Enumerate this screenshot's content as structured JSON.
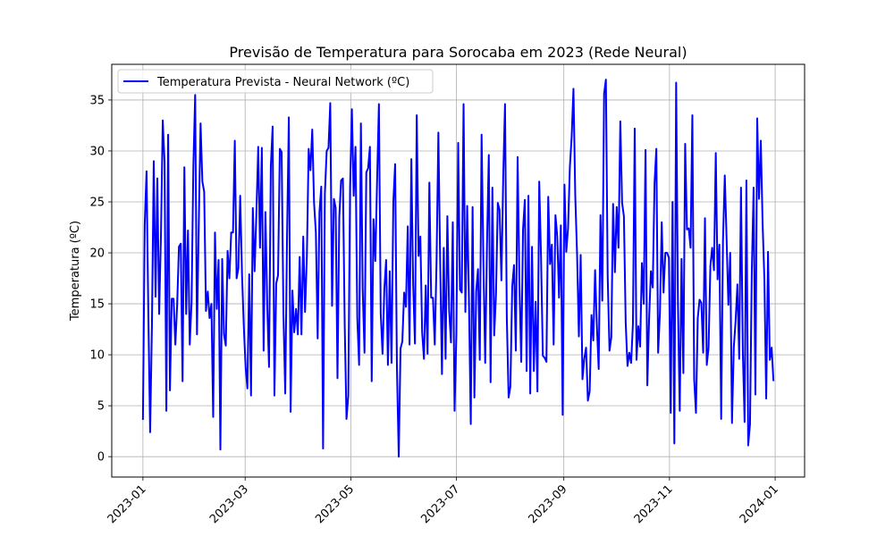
{
  "chart_data": {
    "type": "line",
    "title": "Previsão de Temperatura para Sorocaba em 2023 (Rede Neural)",
    "xlabel": "",
    "ylabel": "Temperatura (ºC)",
    "x_start": "2023-01-01",
    "x_end": "2023-12-31",
    "xlim": [
      "2022-12-14",
      "2024-01-18"
    ],
    "ylim": [
      -2,
      38.5
    ],
    "x_ticks": [
      "2023-01",
      "2023-03",
      "2023-05",
      "2023-07",
      "2023-09",
      "2023-11",
      "2024-01"
    ],
    "y_ticks": [
      0,
      5,
      10,
      15,
      20,
      25,
      30,
      35
    ],
    "grid": true,
    "legend_position": "upper-left",
    "series": [
      {
        "name": "Temperatura Prevista - Neural Network (ºC)",
        "color": "#0000ff",
        "values": [
          3.7,
          22.8,
          28.0,
          14.0,
          2.4,
          12.9,
          29.0,
          15.7,
          27.3,
          14.0,
          21.7,
          33.0,
          28.9,
          4.5,
          31.6,
          6.5,
          15.5,
          15.5,
          11.0,
          14.9,
          20.6,
          20.9,
          7.4,
          28.4,
          14.0,
          22.2,
          11.0,
          15.2,
          28.5,
          35.5,
          12.0,
          22.8,
          32.7,
          27.0,
          26.0,
          14.3,
          16.2,
          13.6,
          15.0,
          3.9,
          22.0,
          14.5,
          19.3,
          0.7,
          19.4,
          12.0,
          10.9,
          20.2,
          17.5,
          22.0,
          22.0,
          31.0,
          17.5,
          18.5,
          25.6,
          17.9,
          12.8,
          8.8,
          6.7,
          17.9,
          6.0,
          24.4,
          18.2,
          24.0,
          30.4,
          20.5,
          30.3,
          10.4,
          24.0,
          14.9,
          8.8,
          28.5,
          32.4,
          6.0,
          17.0,
          17.8,
          30.2,
          29.9,
          14.0,
          6.2,
          21.6,
          33.3,
          4.4,
          16.3,
          12.2,
          14.5,
          12.0,
          19.6,
          12.0,
          21.6,
          14.2,
          19.6,
          30.2,
          28.1,
          32.1,
          24.9,
          22.0,
          11.6,
          24.0,
          26.5,
          0.8,
          25.8,
          30.0,
          30.3,
          34.7,
          14.8,
          25.3,
          24.4,
          7.7,
          23.5,
          27.1,
          27.3,
          13.1,
          3.7,
          6.0,
          26.5,
          34.1,
          25.6,
          30.4,
          13.6,
          9.0,
          32.7,
          16.4,
          10.2,
          27.9,
          28.3,
          30.4,
          7.4,
          23.3,
          19.2,
          27.2,
          34.6,
          14.1,
          10.1,
          16.4,
          19.3,
          9.0,
          18.2,
          9.2,
          25.0,
          28.7,
          8.8,
          0.0,
          10.6,
          11.3,
          16.1,
          14.7,
          22.6,
          11.0,
          29.2,
          16.9,
          11.1,
          33.5,
          19.7,
          21.6,
          12.2,
          9.6,
          16.8,
          10.1,
          26.9,
          15.6,
          15.6,
          11.0,
          19.2,
          31.8,
          19.2,
          8.1,
          20.5,
          9.6,
          23.6,
          14.3,
          11.2,
          23.0,
          4.5,
          12.0,
          30.8,
          16.4,
          16.1,
          34.6,
          14.2,
          24.6,
          15.1,
          3.2,
          24.5,
          5.8,
          16.2,
          18.4,
          9.5,
          31.6,
          19.2,
          9.2,
          20.9,
          29.6,
          7.3,
          26.4,
          11.9,
          16.0,
          24.9,
          24.2,
          17.3,
          27.5,
          34.6,
          13.6,
          5.8,
          6.9,
          16.7,
          18.8,
          10.4,
          29.4,
          17.1,
          9.3,
          22.3,
          25.2,
          8.4,
          25.6,
          6.2,
          20.6,
          8.4,
          15.2,
          6.4,
          27.0,
          19.6,
          9.9,
          9.7,
          9.3,
          25.5,
          18.9,
          20.8,
          11.0,
          23.7,
          21.6,
          15.6,
          22.7,
          4.1,
          26.7,
          20.1,
          22.4,
          28.4,
          31.4,
          36.1,
          25.6,
          19.9,
          11.8,
          19.8,
          7.6,
          9.6,
          10.7,
          5.5,
          6.4,
          13.9,
          11.4,
          18.3,
          12.8,
          8.6,
          23.7,
          15.3,
          35.6,
          37.0,
          17.7,
          10.4,
          11.7,
          24.8,
          18.1,
          24.5,
          20.5,
          32.9,
          24.9,
          23.6,
          13.1,
          8.9,
          10.2,
          9.2,
          13.0,
          32.2,
          9.5,
          12.8,
          10.8,
          19.0,
          15.0,
          30.1,
          7.0,
          13.6,
          18.2,
          16.6,
          26.8,
          30.2,
          10.2,
          14.1,
          23.0,
          16.1,
          20.0,
          20.0,
          19.5,
          4.3,
          25.0,
          1.3,
          36.7,
          15.0,
          4.5,
          19.4,
          8.2,
          30.7,
          22.3,
          22.4,
          20.5,
          33.5,
          7.6,
          4.3,
          13.6,
          15.4,
          15.1,
          10.2,
          23.4,
          9.0,
          10.7,
          18.7,
          20.5,
          18.3,
          29.8,
          17.4,
          20.8,
          3.7,
          21.2,
          27.6,
          21.4,
          14.9,
          20.0,
          3.3,
          10.7,
          13.3,
          16.9,
          9.6,
          26.4,
          10.4,
          3.4,
          27.1,
          1.1,
          3.2,
          18.2,
          26.4,
          6.1,
          33.2,
          25.3,
          31.0,
          22.9,
          17.3,
          5.7,
          20.1,
          9.5,
          10.7,
          7.5
        ]
      }
    ]
  }
}
